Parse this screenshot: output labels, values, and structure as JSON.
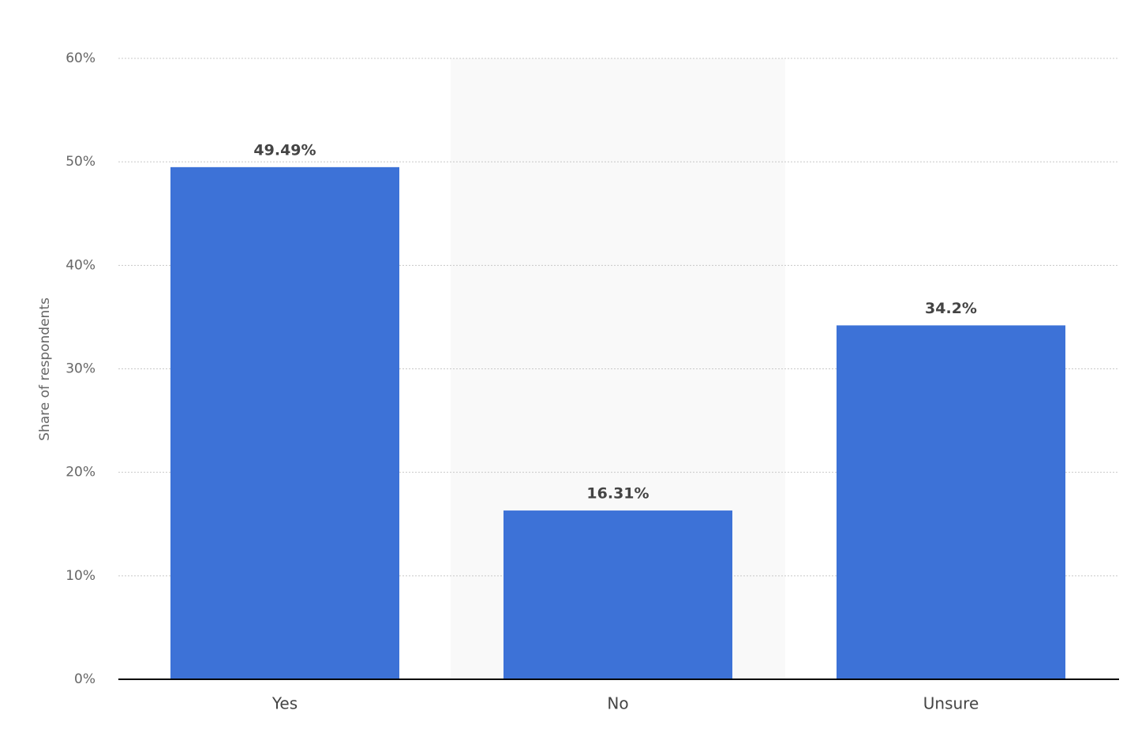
{
  "chart_data": {
    "type": "bar",
    "y_axis_label": "Share of respondents",
    "categories": [
      "Yes",
      "No",
      "Unsure"
    ],
    "values": [
      49.49,
      16.31,
      34.2
    ],
    "value_labels": [
      "49.49%",
      "16.31%",
      "34.2%"
    ],
    "color": "#3d72d7",
    "ylim": [
      0,
      60
    ],
    "yticks": [
      {
        "value": 0,
        "label": "0%"
      },
      {
        "value": 10,
        "label": "10%"
      },
      {
        "value": 20,
        "label": "20%"
      },
      {
        "value": 30,
        "label": "30%"
      },
      {
        "value": 40,
        "label": "40%"
      },
      {
        "value": 50,
        "label": "50%"
      },
      {
        "value": 60,
        "label": "60%"
      }
    ],
    "grid": true
  }
}
